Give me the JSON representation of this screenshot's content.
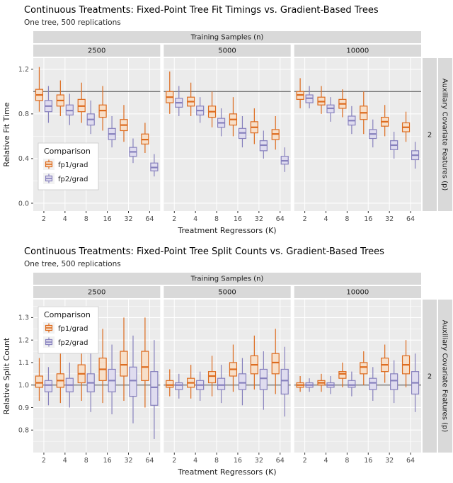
{
  "colors": {
    "panel_bg": "#EBEBEB",
    "strip_bg": "#D9D9D9",
    "grid": "#FFFFFF",
    "ref_line": "#737373",
    "axis_text": "#4D4D4D",
    "tick_mark": "#333333",
    "series": {
      "fp1": {
        "stroke": "#DD6B1E",
        "fill": "#F7DFC9"
      },
      "fp2": {
        "stroke": "#8781BD",
        "fill": "#DFDCEF"
      }
    }
  },
  "legend": {
    "title": "Comparison",
    "entries": [
      {
        "label": "fp1/grad",
        "series": "fp1"
      },
      {
        "label": "fp2/grad",
        "series": "fp2"
      }
    ]
  },
  "facets": {
    "top_strip": "Training Samples (n)",
    "right_outer": "Auxiliary Covariate Features (p)",
    "right_inner": "2"
  },
  "x": {
    "title": "Treatment Regressors (K)",
    "ticks": [
      "2",
      "4",
      "8",
      "16",
      "32",
      "64"
    ]
  },
  "charts": [
    {
      "title": "Continuous Treatments: Fixed-Point Tree Fit Timings vs. Gradient-Based Trees",
      "subtitle": "One tree, 500 replications",
      "ylabel": "Relative Fit Time",
      "ylim": [
        -0.07,
        1.3
      ],
      "yticks": [
        0.0,
        0.4,
        0.8,
        1.2
      ],
      "yminor": [
        0.2,
        0.6,
        1.0
      ],
      "ref_y": 1.0,
      "legend_position": "inside-lower-left",
      "chart_data": {
        "type": "boxplot",
        "x_categories": [
          "2",
          "4",
          "8",
          "16",
          "32",
          "64"
        ],
        "box_stats_format": [
          "whisker_low",
          "q1",
          "median",
          "q3",
          "whisker_high"
        ],
        "panels": [
          {
            "facet": "2500",
            "boxes": {
              "fp1": [
                [
                  0.82,
                  0.92,
                  0.97,
                  1.02,
                  1.22
                ],
                [
                  0.78,
                  0.87,
                  0.92,
                  0.97,
                  1.1
                ],
                [
                  0.72,
                  0.82,
                  0.87,
                  0.93,
                  1.08
                ],
                [
                  0.65,
                  0.77,
                  0.83,
                  0.88,
                  1.05
                ],
                [
                  0.55,
                  0.65,
                  0.7,
                  0.75,
                  0.88
                ],
                [
                  0.45,
                  0.53,
                  0.57,
                  0.62,
                  0.72
                ]
              ],
              "fp2": [
                [
                  0.72,
                  0.82,
                  0.87,
                  0.92,
                  1.05
                ],
                [
                  0.7,
                  0.79,
                  0.83,
                  0.88,
                  0.98
                ],
                [
                  0.62,
                  0.7,
                  0.75,
                  0.8,
                  0.92
                ],
                [
                  0.5,
                  0.57,
                  0.62,
                  0.67,
                  0.78
                ],
                [
                  0.36,
                  0.42,
                  0.46,
                  0.5,
                  0.58
                ],
                [
                  0.24,
                  0.29,
                  0.32,
                  0.36,
                  0.44
                ]
              ]
            }
          },
          {
            "facet": "5000",
            "boxes": {
              "fp1": [
                [
                  0.8,
                  0.9,
                  0.95,
                  1.0,
                  1.18
                ],
                [
                  0.78,
                  0.87,
                  0.91,
                  0.95,
                  1.08
                ],
                [
                  0.68,
                  0.77,
                  0.82,
                  0.87,
                  1.0
                ],
                [
                  0.6,
                  0.7,
                  0.75,
                  0.8,
                  0.95
                ],
                [
                  0.53,
                  0.63,
                  0.68,
                  0.73,
                  0.85
                ],
                [
                  0.48,
                  0.57,
                  0.62,
                  0.66,
                  0.78
                ]
              ],
              "fp2": [
                [
                  0.78,
                  0.86,
                  0.9,
                  0.94,
                  1.05
                ],
                [
                  0.72,
                  0.79,
                  0.83,
                  0.87,
                  0.95
                ],
                [
                  0.6,
                  0.68,
                  0.72,
                  0.76,
                  0.85
                ],
                [
                  0.5,
                  0.58,
                  0.63,
                  0.67,
                  0.78
                ],
                [
                  0.4,
                  0.47,
                  0.52,
                  0.56,
                  0.65
                ],
                [
                  0.28,
                  0.35,
                  0.38,
                  0.42,
                  0.5
                ]
              ]
            }
          },
          {
            "facet": "10000",
            "boxes": {
              "fp1": [
                [
                  0.85,
                  0.93,
                  0.97,
                  1.0,
                  1.12
                ],
                [
                  0.8,
                  0.88,
                  0.91,
                  0.95,
                  1.05
                ],
                [
                  0.77,
                  0.85,
                  0.89,
                  0.93,
                  1.02
                ],
                [
                  0.62,
                  0.75,
                  0.81,
                  0.87,
                  1.0
                ],
                [
                  0.6,
                  0.69,
                  0.73,
                  0.77,
                  0.88
                ],
                [
                  0.55,
                  0.64,
                  0.68,
                  0.72,
                  0.82
                ]
              ],
              "fp2": [
                [
                  0.85,
                  0.9,
                  0.94,
                  0.97,
                  1.05
                ],
                [
                  0.73,
                  0.81,
                  0.85,
                  0.88,
                  0.95
                ],
                [
                  0.62,
                  0.7,
                  0.74,
                  0.78,
                  0.87
                ],
                [
                  0.5,
                  0.58,
                  0.62,
                  0.66,
                  0.75
                ],
                [
                  0.4,
                  0.48,
                  0.52,
                  0.56,
                  0.64
                ],
                [
                  0.31,
                  0.39,
                  0.43,
                  0.47,
                  0.55
                ]
              ]
            }
          }
        ]
      }
    },
    {
      "title": "Continuous Treatments: Fixed-Point Tree Split Counts vs. Gradient-Based Trees",
      "subtitle": "One tree, 500 replications",
      "ylabel": "Relative Split Count",
      "ylim": [
        0.7,
        1.38
      ],
      "yticks": [
        0.8,
        0.9,
        1.0,
        1.1,
        1.2,
        1.3
      ],
      "yminor": [
        0.75,
        0.85,
        0.95,
        1.05,
        1.15,
        1.25,
        1.35
      ],
      "ref_y": 1.0,
      "legend_position": "inside-upper-left",
      "chart_data": {
        "type": "boxplot",
        "x_categories": [
          "2",
          "4",
          "8",
          "16",
          "32",
          "64"
        ],
        "box_stats_format": [
          "whisker_low",
          "q1",
          "median",
          "q3",
          "whisker_high"
        ],
        "panels": [
          {
            "facet": "2500",
            "boxes": {
              "fp1": [
                [
                  0.93,
                  0.99,
                  1.01,
                  1.04,
                  1.12
                ],
                [
                  0.92,
                  0.99,
                  1.02,
                  1.05,
                  1.15
                ],
                [
                  0.93,
                  1.01,
                  1.05,
                  1.09,
                  1.22
                ],
                [
                  0.92,
                  1.02,
                  1.07,
                  1.12,
                  1.25
                ],
                [
                  0.93,
                  1.04,
                  1.09,
                  1.15,
                  1.3
                ],
                [
                  0.9,
                  1.02,
                  1.08,
                  1.15,
                  1.3
                ]
              ],
              "fp2": [
                [
                  0.91,
                  0.97,
                  1.0,
                  1.02,
                  1.08
                ],
                [
                  0.9,
                  0.97,
                  1.0,
                  1.03,
                  1.1
                ],
                [
                  0.88,
                  0.97,
                  1.01,
                  1.05,
                  1.15
                ],
                [
                  0.87,
                  0.97,
                  1.02,
                  1.07,
                  1.18
                ],
                [
                  0.83,
                  0.95,
                  1.02,
                  1.08,
                  1.22
                ],
                [
                  0.76,
                  0.91,
                  0.99,
                  1.06,
                  1.2
                ]
              ]
            }
          },
          {
            "facet": "5000",
            "boxes": {
              "fp1": [
                [
                  0.95,
                  0.99,
                  1.0,
                  1.02,
                  1.07
                ],
                [
                  0.94,
                  0.99,
                  1.01,
                  1.03,
                  1.09
                ],
                [
                  0.95,
                  1.01,
                  1.04,
                  1.06,
                  1.13
                ],
                [
                  0.97,
                  1.04,
                  1.07,
                  1.1,
                  1.18
                ],
                [
                  0.98,
                  1.05,
                  1.09,
                  1.13,
                  1.22
                ],
                [
                  0.96,
                  1.05,
                  1.1,
                  1.14,
                  1.25
                ]
              ],
              "fp2": [
                [
                  0.94,
                  0.98,
                  1.0,
                  1.01,
                  1.05
                ],
                [
                  0.93,
                  0.98,
                  1.0,
                  1.02,
                  1.06
                ],
                [
                  0.92,
                  0.98,
                  1.0,
                  1.03,
                  1.09
                ],
                [
                  0.91,
                  0.98,
                  1.01,
                  1.05,
                  1.12
                ],
                [
                  0.89,
                  0.98,
                  1.03,
                  1.07,
                  1.15
                ],
                [
                  0.86,
                  0.96,
                  1.02,
                  1.07,
                  1.17
                ]
              ]
            }
          },
          {
            "facet": "10000",
            "boxes": {
              "fp1": [
                [
                  0.97,
                  0.99,
                  1.0,
                  1.01,
                  1.04
                ],
                [
                  0.97,
                  1.0,
                  1.01,
                  1.02,
                  1.05
                ],
                [
                  0.99,
                  1.03,
                  1.05,
                  1.06,
                  1.1
                ],
                [
                  1.0,
                  1.05,
                  1.08,
                  1.1,
                  1.15
                ],
                [
                  1.01,
                  1.06,
                  1.09,
                  1.12,
                  1.18
                ],
                [
                  0.99,
                  1.05,
                  1.09,
                  1.13,
                  1.2
                ]
              ],
              "fp2": [
                [
                  0.97,
                  0.99,
                  1.0,
                  1.01,
                  1.03
                ],
                [
                  0.96,
                  0.99,
                  1.0,
                  1.01,
                  1.04
                ],
                [
                  0.95,
                  0.99,
                  1.0,
                  1.02,
                  1.06
                ],
                [
                  0.93,
                  0.98,
                  1.01,
                  1.03,
                  1.08
                ],
                [
                  0.92,
                  0.98,
                  1.02,
                  1.05,
                  1.11
                ],
                [
                  0.88,
                  0.96,
                  1.01,
                  1.06,
                  1.14
                ]
              ]
            }
          }
        ]
      }
    }
  ]
}
